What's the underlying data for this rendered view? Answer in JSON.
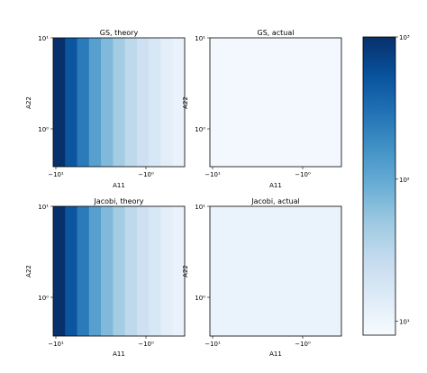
{
  "chart_data": [
    {
      "type": "heatmap",
      "title": "GS, theory",
      "xlabel": "A11",
      "ylabel": "A22",
      "x_ticks": [
        "−10¹",
        "−10⁰"
      ],
      "y_ticks": [
        "10¹",
        "10⁰"
      ],
      "y_scale": "log",
      "x_scale": "symlog",
      "column_values": [
        1000,
        500,
        250,
        120,
        70,
        45,
        30,
        22,
        17,
        13,
        11
      ]
    },
    {
      "type": "heatmap",
      "title": "GS, actual",
      "xlabel": "A11",
      "ylabel": "A22",
      "x_ticks": [
        "−10¹",
        "−10⁰"
      ],
      "y_ticks": [
        "10¹",
        "10⁰"
      ],
      "y_scale": "log",
      "x_scale": "symlog",
      "column_values": [
        9,
        9,
        9,
        9,
        9,
        9,
        9,
        9,
        9,
        9,
        9
      ]
    },
    {
      "type": "heatmap",
      "title": "Jacobi, theory",
      "xlabel": "A11",
      "ylabel": "A22",
      "x_ticks": [
        "−10¹",
        "−10⁰"
      ],
      "y_ticks": [
        "10¹",
        "10⁰"
      ],
      "y_scale": "log",
      "x_scale": "symlog",
      "column_values": [
        1000,
        500,
        250,
        120,
        70,
        45,
        30,
        22,
        17,
        13,
        11
      ]
    },
    {
      "type": "heatmap",
      "title": "Jacobi, actual",
      "xlabel": "A11",
      "ylabel": "A22",
      "x_ticks": [
        "−10¹",
        "−10⁰"
      ],
      "y_ticks": [
        "10¹",
        "10⁰"
      ],
      "y_scale": "log",
      "x_scale": "symlog",
      "column_values": [
        11,
        11,
        11,
        11,
        11,
        11,
        11,
        11,
        11,
        11,
        11
      ]
    }
  ],
  "colorbar": {
    "colormap": "Blues",
    "scale": "log",
    "range": [
      8,
      1000
    ],
    "ticks": [
      {
        "value": 1000,
        "label": "10³"
      },
      {
        "value": 100,
        "label": "10²"
      },
      {
        "value": 10,
        "label": "10¹"
      }
    ]
  }
}
